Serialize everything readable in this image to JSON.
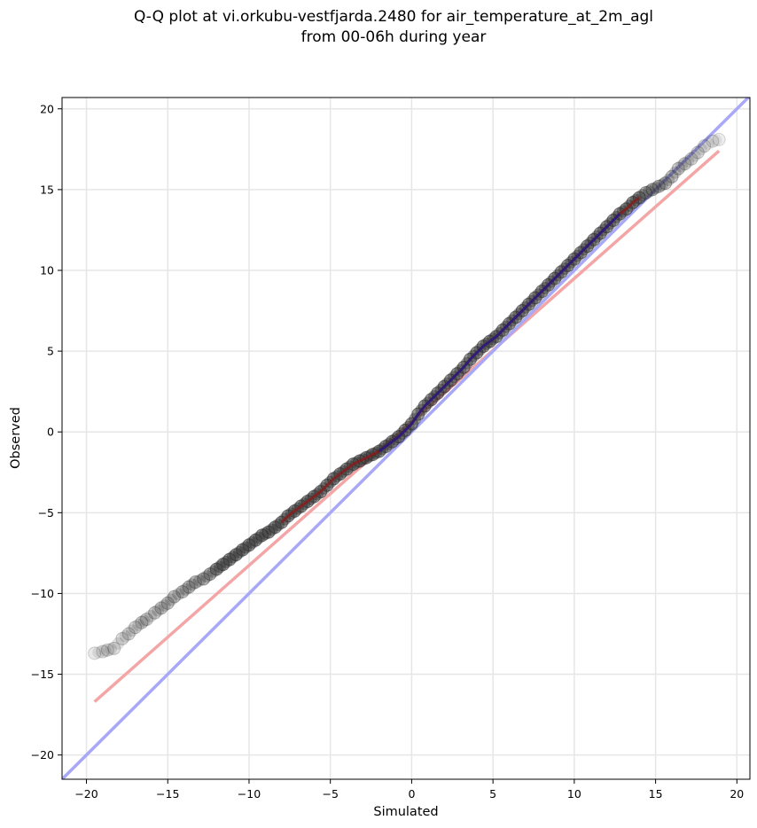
{
  "chart_data": {
    "type": "scatter",
    "title": [
      "Q-Q plot at vi.orkubu-vestfjarda.2480 for air_temperature_at_2m_agl",
      "from 00-06h during year"
    ],
    "xlabel": "Simulated",
    "ylabel": "Observed",
    "xlim": [
      -21.5,
      20.8
    ],
    "ylim": [
      -21.5,
      20.7
    ],
    "xticks": [
      -20,
      -15,
      -10,
      -5,
      0,
      5,
      10,
      15,
      20
    ],
    "yticks": [
      -20,
      -15,
      -10,
      -5,
      0,
      5,
      10,
      15,
      20
    ],
    "xtick_labels": [
      "−20",
      "−15",
      "−10",
      "−5",
      "0",
      "5",
      "10",
      "15",
      "20"
    ],
    "ytick_labels": [
      "−20",
      "−15",
      "−10",
      "−5",
      "0",
      "5",
      "10",
      "15",
      "20"
    ],
    "grid": true,
    "quantile_points": {
      "x": [
        -19.5,
        -19.0,
        -18.7,
        -18.3,
        -17.8,
        -17.4,
        -17.0,
        -16.6,
        -16.3,
        -15.8,
        -15.4,
        -15.0,
        -14.6,
        -14.1,
        -13.7,
        -13.3,
        -12.8,
        -12.4,
        -12.0,
        -11.6,
        -11.2,
        -10.8,
        -10.4,
        -10.0,
        -9.6,
        -9.2,
        -8.8,
        -8.4,
        -8.0,
        -7.6,
        -7.2,
        -6.8,
        -6.4,
        -6.0,
        -5.6,
        -5.2,
        -4.8,
        -4.4,
        -4.0,
        -3.6,
        -3.2,
        -2.8,
        -2.4,
        -2.0,
        -1.6,
        -1.2,
        -0.8,
        -0.4,
        0.0,
        0.4,
        0.8,
        1.2,
        1.6,
        2.0,
        2.4,
        2.8,
        3.2,
        3.6,
        4.0,
        4.4,
        4.8,
        5.2,
        5.6,
        6.0,
        6.4,
        6.8,
        7.2,
        7.6,
        8.0,
        8.4,
        8.8,
        9.2,
        9.6,
        10.0,
        10.4,
        10.8,
        11.2,
        11.6,
        12.0,
        12.4,
        12.8,
        13.2,
        13.6,
        14.0,
        14.4,
        14.8,
        15.2,
        15.6,
        16.0,
        16.4,
        16.8,
        17.2,
        17.6,
        18.0,
        18.5,
        18.9
      ],
      "y": [
        -13.7,
        -13.6,
        -13.5,
        -13.4,
        -12.8,
        -12.5,
        -12.1,
        -11.8,
        -11.6,
        -11.2,
        -10.9,
        -10.6,
        -10.2,
        -9.9,
        -9.6,
        -9.3,
        -9.1,
        -8.8,
        -8.5,
        -8.2,
        -7.9,
        -7.6,
        -7.3,
        -7.0,
        -6.7,
        -6.4,
        -6.2,
        -5.9,
        -5.6,
        -5.2,
        -4.9,
        -4.6,
        -4.3,
        -4.0,
        -3.7,
        -3.3,
        -2.9,
        -2.6,
        -2.3,
        -2.0,
        -1.8,
        -1.6,
        -1.4,
        -1.2,
        -0.9,
        -0.6,
        -0.3,
        0.1,
        0.5,
        1.1,
        1.6,
        2.0,
        2.4,
        2.8,
        3.2,
        3.6,
        4.0,
        4.5,
        4.9,
        5.3,
        5.6,
        5.9,
        6.3,
        6.7,
        7.1,
        7.5,
        7.9,
        8.3,
        8.7,
        9.1,
        9.5,
        9.9,
        10.3,
        10.7,
        11.1,
        11.5,
        11.9,
        12.3,
        12.7,
        13.1,
        13.5,
        13.8,
        14.2,
        14.5,
        14.8,
        15.0,
        15.2,
        15.4,
        15.8,
        16.3,
        16.6,
        16.9,
        17.3,
        17.7,
        18.0,
        18.1
      ]
    },
    "lines": [
      {
        "color": "#f4a6a6",
        "x": [
          -19.5,
          18.9
        ],
        "y": [
          -16.7,
          17.4
        ]
      },
      {
        "color": "#a8a8f8",
        "x": [
          -21.5,
          20.8
        ],
        "y": [
          -21.5,
          20.8
        ]
      }
    ],
    "overlay_segments": [
      {
        "color": "#8b1a1a",
        "x_range": [
          -8.0,
          14.0
        ]
      },
      {
        "color": "#1a1a8b",
        "x_range": [
          -2.0,
          13.0
        ]
      }
    ],
    "colors": {
      "points": "#2a2a2a",
      "grid": "#e6e6e6"
    }
  }
}
